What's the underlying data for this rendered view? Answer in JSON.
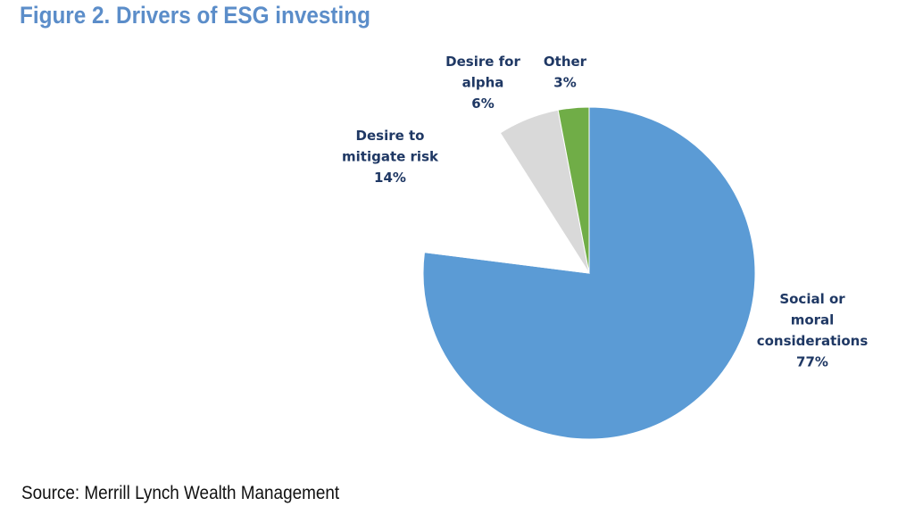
{
  "figure": {
    "title": "Figure 2. Drivers of ESG investing",
    "source": "Source: Merrill Lynch Wealth Management"
  },
  "chart_data": {
    "type": "pie",
    "title": "Figure 2. Drivers of ESG investing",
    "slices": [
      {
        "label_lines": [
          "Social or",
          "moral",
          "considerations"
        ],
        "value": 77,
        "value_label": "77%",
        "color": "#5b9bd5"
      },
      {
        "label_lines": [
          "Desire to",
          "mitigate risk"
        ],
        "value": 14,
        "value_label": "14%",
        "color": "#ffffff"
      },
      {
        "label_lines": [
          "Desire for",
          "alpha"
        ],
        "value": 6,
        "value_label": "6%",
        "color": "#d9d9d9"
      },
      {
        "label_lines": [
          "Other"
        ],
        "value": 3,
        "value_label": "3%",
        "color": "#70ad47"
      }
    ],
    "start": "12 o'clock",
    "direction": "clockwise",
    "legend": "none"
  }
}
